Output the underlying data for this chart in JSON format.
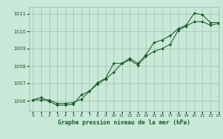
{
  "title": "Graphe pression niveau de la mer (hPa)",
  "background_color": "#c8e8d8",
  "grid_color": "#a0c8b0",
  "line_color": "#1a5c2a",
  "xlim": [
    -0.5,
    23
  ],
  "ylim": [
    1005.4,
    1011.4
  ],
  "yticks": [
    1006,
    1007,
    1008,
    1009,
    1010,
    1011
  ],
  "xticks": [
    0,
    1,
    2,
    3,
    4,
    5,
    6,
    7,
    8,
    9,
    10,
    11,
    12,
    13,
    14,
    15,
    16,
    17,
    18,
    19,
    20,
    21,
    22,
    23
  ],
  "series1_x": [
    0,
    1,
    2,
    3,
    4,
    5,
    6,
    7,
    8,
    9,
    10,
    11,
    12,
    13,
    14,
    15,
    16,
    17,
    18,
    19,
    20,
    21,
    22,
    23
  ],
  "series1_y": [
    1006.05,
    1006.2,
    1005.95,
    1005.75,
    1005.75,
    1005.8,
    1006.35,
    1006.55,
    1006.95,
    1007.25,
    1007.65,
    1008.15,
    1008.35,
    1008.05,
    1008.55,
    1008.85,
    1009.0,
    1009.25,
    1010.05,
    1010.3,
    1010.55,
    1010.55,
    1010.35,
    1010.45
  ],
  "series2_x": [
    0,
    1,
    2,
    3,
    4,
    5,
    6,
    7,
    8,
    9,
    10,
    11,
    12,
    13,
    14,
    15,
    16,
    17,
    18,
    19,
    20,
    21,
    22,
    23
  ],
  "series2_y": [
    1006.05,
    1006.05,
    1006.05,
    1005.85,
    1005.85,
    1005.9,
    1006.1,
    1006.55,
    1007.05,
    1007.3,
    1008.15,
    1008.15,
    1008.45,
    1008.15,
    1008.65,
    1009.35,
    1009.5,
    1009.75,
    1010.15,
    1010.35,
    1011.05,
    1010.95,
    1010.5,
    1010.5
  ]
}
